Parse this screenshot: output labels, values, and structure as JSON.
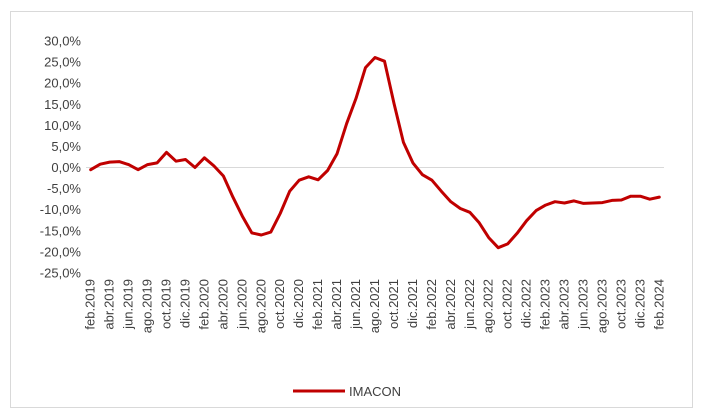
{
  "chart_data": {
    "type": "line",
    "title": "",
    "xlabel": "",
    "ylabel": "",
    "ylim": [
      -25,
      30
    ],
    "y_ticks": [
      30,
      25,
      20,
      15,
      10,
      5,
      0,
      -5,
      -10,
      -15,
      -20,
      -25
    ],
    "y_tick_labels": [
      "30,0%",
      "25,0%",
      "20,0%",
      "15,0%",
      "10,0%",
      "5,0%",
      "0,0%",
      "-5,0%",
      "-10,0%",
      "-15,0%",
      "-20,0%",
      "-25,0%"
    ],
    "x": [
      "feb.2019",
      "mar.2019",
      "abr.2019",
      "may.2019",
      "jun.2019",
      "jul.2019",
      "ago.2019",
      "sep.2019",
      "oct.2019",
      "nov.2019",
      "dic.2019",
      "ene.2020",
      "feb.2020",
      "mar.2020",
      "abr.2020",
      "may.2020",
      "jun.2020",
      "jul.2020",
      "ago.2020",
      "sep.2020",
      "oct.2020",
      "nov.2020",
      "dic.2020",
      "ene.2021",
      "feb.2021",
      "mar.2021",
      "abr.2021",
      "may.2021",
      "jun.2021",
      "jul.2021",
      "ago.2021",
      "sep.2021",
      "oct.2021",
      "nov.2021",
      "dic.2021",
      "ene.2022",
      "feb.2022",
      "mar.2022",
      "abr.2022",
      "may.2022",
      "jun.2022",
      "jul.2022",
      "ago.2022",
      "sep.2022",
      "oct.2022",
      "nov.2022",
      "dic.2022",
      "ene.2023",
      "feb.2023",
      "mar.2023",
      "abr.2023",
      "may.2023",
      "jun.2023",
      "jul.2023",
      "ago.2023",
      "sep.2023",
      "oct.2023",
      "nov.2023",
      "dic.2023",
      "ene.2024",
      "feb.2024"
    ],
    "x_tick_labels": [
      "feb.2019",
      "abr.2019",
      "jun.2019",
      "ago.2019",
      "oct.2019",
      "dic.2019",
      "feb.2020",
      "abr.2020",
      "jun.2020",
      "ago.2020",
      "oct.2020",
      "dic.2020",
      "feb.2021",
      "abr.2021",
      "jun.2021",
      "ago.2021",
      "oct.2021",
      "dic.2021",
      "feb.2022",
      "abr.2022",
      "jun.2022",
      "ago.2022",
      "oct.2022",
      "dic.2022",
      "feb.2023",
      "abr.2023",
      "jun.2023",
      "ago.2023",
      "oct.2023",
      "dic.2023",
      "feb.2024"
    ],
    "series": [
      {
        "name": "IMACON",
        "color": "#c00000",
        "values": [
          -0.5,
          0.8,
          1.3,
          1.4,
          0.7,
          -0.5,
          0.7,
          1.1,
          3.6,
          1.5,
          1.9,
          0.0,
          2.3,
          0.4,
          -2.0,
          -7.0,
          -11.5,
          -15.5,
          -16.0,
          -15.3,
          -10.9,
          -5.6,
          -3.0,
          -2.2,
          -2.9,
          -0.7,
          3.3,
          10.4,
          16.4,
          23.7,
          26.1,
          25.2,
          15.2,
          6.0,
          1.1,
          -1.7,
          -3.0,
          -5.6,
          -8.1,
          -9.7,
          -10.6,
          -13.1,
          -16.6,
          -19.0,
          -18.1,
          -15.6,
          -12.6,
          -10.2,
          -8.9,
          -8.1,
          -8.4,
          -7.9,
          -8.5,
          -8.4,
          -8.3,
          -7.8,
          -7.7,
          -6.8,
          -6.8,
          -7.5,
          -7.0
        ]
      }
    ],
    "legend": {
      "position": "bottom",
      "entries": [
        "IMACON"
      ]
    },
    "grid": false
  }
}
